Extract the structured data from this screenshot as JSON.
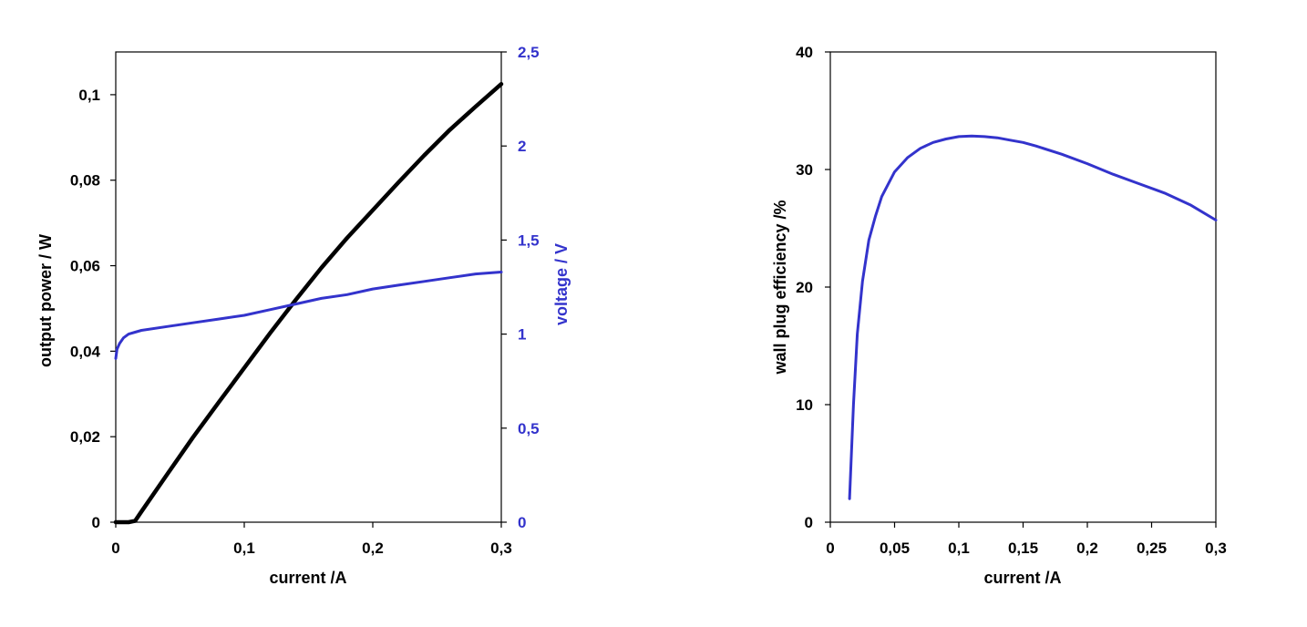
{
  "colors": {
    "black": "#000000",
    "blue": "#3333CC",
    "axis": "#000000",
    "background": "#ffffff"
  },
  "chart_data": [
    {
      "type": "line",
      "grid": false,
      "legend": "none",
      "xlabel": "current /A",
      "ylabel": "output power / W",
      "y2label": "voltage / V",
      "xlim": [
        0,
        0.3
      ],
      "ylim": [
        0,
        0.11
      ],
      "y2lim": [
        0,
        2.5
      ],
      "x_ticks": [
        0,
        0.1,
        0.2,
        0.3
      ],
      "x_tick_labels": [
        "0",
        "0,1",
        "0,2",
        "0,3"
      ],
      "y_ticks": [
        0,
        0.02,
        0.04,
        0.06,
        0.08,
        0.1
      ],
      "y_tick_labels": [
        "0",
        "0,02",
        "0,04",
        "0,06",
        "0,08",
        "0,1"
      ],
      "y2_ticks": [
        0,
        0.5,
        1,
        1.5,
        2,
        2.5
      ],
      "y2_tick_labels": [
        "0",
        "0,5",
        "1",
        "1,5",
        "2",
        "2,5"
      ],
      "series": [
        {
          "axis": "left",
          "color": "#000000",
          "x": [
            0,
            0.01,
            0.015,
            0.02,
            0.04,
            0.06,
            0.08,
            0.1,
            0.12,
            0.14,
            0.16,
            0.18,
            0.2,
            0.22,
            0.24,
            0.26,
            0.28,
            0.3
          ],
          "y": [
            0,
            0,
            0.0003,
            0.0025,
            0.0112,
            0.0198,
            0.028,
            0.0361,
            0.0442,
            0.052,
            0.0595,
            0.0665,
            0.073,
            0.0795,
            0.0858,
            0.0918,
            0.0972,
            0.1025
          ]
        },
        {
          "axis": "right",
          "color": "#3333CC",
          "x": [
            0,
            0.001,
            0.003,
            0.006,
            0.01,
            0.015,
            0.02,
            0.04,
            0.06,
            0.08,
            0.1,
            0.12,
            0.14,
            0.16,
            0.18,
            0.2,
            0.22,
            0.24,
            0.26,
            0.28,
            0.3
          ],
          "y": [
            0.87,
            0.92,
            0.95,
            0.98,
            1.0,
            1.01,
            1.02,
            1.04,
            1.06,
            1.08,
            1.1,
            1.13,
            1.16,
            1.19,
            1.21,
            1.24,
            1.26,
            1.28,
            1.3,
            1.32,
            1.33
          ]
        }
      ]
    },
    {
      "type": "line",
      "grid": false,
      "legend": "none",
      "xlabel": "current /A",
      "ylabel": "wall plug efficiency /%",
      "xlim": [
        0,
        0.3
      ],
      "ylim": [
        0,
        40
      ],
      "x_ticks": [
        0,
        0.05,
        0.1,
        0.15,
        0.2,
        0.25,
        0.3
      ],
      "x_tick_labels": [
        "0",
        "0,05",
        "0,1",
        "0,15",
        "0,2",
        "0,25",
        "0,3"
      ],
      "y_ticks": [
        0,
        10,
        20,
        30,
        40
      ],
      "y_tick_labels": [
        "0",
        "10",
        "20",
        "30",
        "40"
      ],
      "series": [
        {
          "color": "#3333CC",
          "x": [
            0.015,
            0.018,
            0.021,
            0.025,
            0.03,
            0.035,
            0.04,
            0.05,
            0.06,
            0.07,
            0.08,
            0.09,
            0.1,
            0.11,
            0.12,
            0.13,
            0.14,
            0.15,
            0.16,
            0.18,
            0.2,
            0.22,
            0.24,
            0.26,
            0.28,
            0.3
          ],
          "y": [
            2,
            10,
            16,
            20.5,
            24,
            26,
            27.7,
            29.8,
            31,
            31.8,
            32.3,
            32.6,
            32.8,
            32.85,
            32.8,
            32.7,
            32.5,
            32.3,
            32,
            31.3,
            30.5,
            29.6,
            28.8,
            28,
            27,
            25.7
          ]
        }
      ]
    }
  ]
}
